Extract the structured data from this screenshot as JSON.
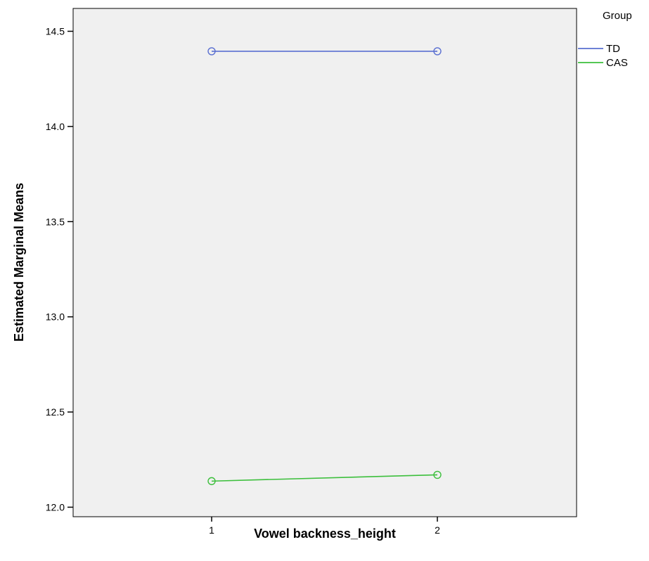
{
  "chart_data": {
    "type": "line",
    "title": "",
    "xlabel": "Vowel backness_height",
    "ylabel": "Estimated Marginal Means",
    "categories": [
      "1",
      "2"
    ],
    "ylim": [
      11.95,
      14.62
    ],
    "yticks": [
      12.0,
      12.5,
      13.0,
      13.5,
      14.0,
      14.5
    ],
    "ytick_labels": [
      "12.0",
      "12.5",
      "13.0",
      "13.5",
      "14.0",
      "14.5"
    ],
    "grid": false,
    "legend_title": "Group",
    "legend_position": "right",
    "series": [
      {
        "name": "TD",
        "color": "#5a6fd1",
        "values": [
          14.395,
          14.395
        ]
      },
      {
        "name": "CAS",
        "color": "#3cbf3c",
        "values": [
          12.137,
          12.17
        ]
      }
    ]
  }
}
